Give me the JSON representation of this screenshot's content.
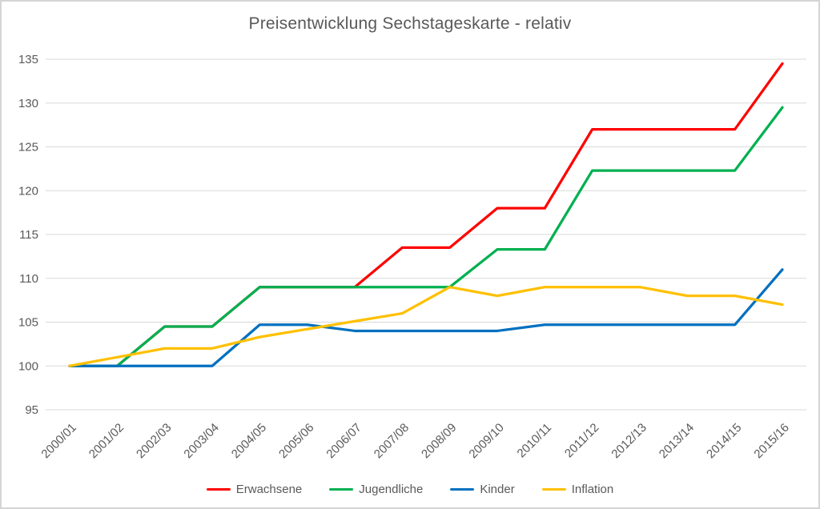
{
  "chart_data": {
    "type": "line",
    "title": "Preisentwicklung Sechstageskarte - relativ",
    "xlabel": "",
    "ylabel": "",
    "ylim": [
      95,
      135
    ],
    "ytick_step": 5,
    "grid": true,
    "legend_position": "bottom",
    "text_color": "#595959",
    "grid_color": "#d9d9d9",
    "categories": [
      "2000/01",
      "2001/02",
      "2002/03",
      "2003/04",
      "2004/05",
      "2005/06",
      "2006/07",
      "2007/08",
      "2008/09",
      "2009/10",
      "2010/11",
      "2011/12",
      "2012/13",
      "2013/14",
      "2014/15",
      "2015/16"
    ],
    "series": [
      {
        "name": "Erwachsene",
        "color": "#ff0000",
        "values": [
          100,
          100,
          104.5,
          104.5,
          109,
          109,
          109,
          113.5,
          113.5,
          118,
          118,
          127,
          127,
          127,
          127,
          134.5
        ]
      },
      {
        "name": "Jugendliche",
        "color": "#00b050",
        "values": [
          100,
          100,
          104.5,
          104.5,
          109,
          109,
          109,
          109,
          109,
          113.3,
          113.3,
          122.3,
          122.3,
          122.3,
          122.3,
          129.5
        ]
      },
      {
        "name": "Kinder",
        "color": "#0070c0",
        "values": [
          100,
          100,
          100,
          100,
          104.7,
          104.7,
          104,
          104,
          104,
          104,
          104.7,
          104.7,
          104.7,
          104.7,
          104.7,
          111
        ]
      },
      {
        "name": "Inflation",
        "color": "#ffc000",
        "values": [
          100,
          101,
          102,
          102,
          103.3,
          104.2,
          105.1,
          106,
          109,
          108,
          109,
          109,
          109,
          108,
          108,
          107
        ]
      }
    ]
  }
}
